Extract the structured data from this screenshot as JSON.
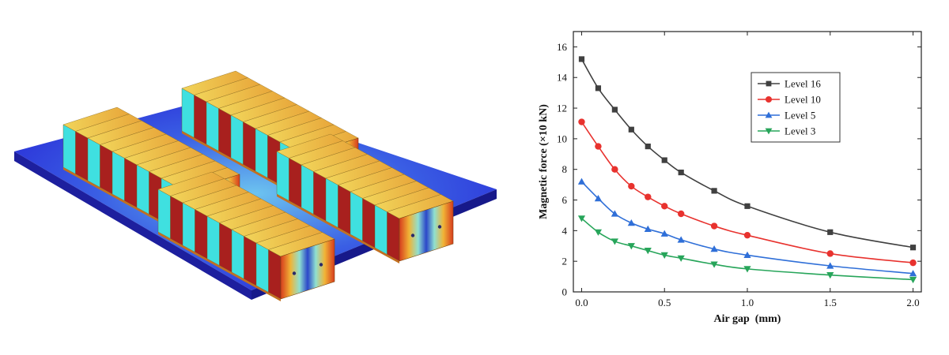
{
  "chart_data": {
    "type": "line",
    "title": "",
    "xlabel": "Air gap  (mm)",
    "ylabel": "Magnetic force (×10 kN)",
    "xlim": [
      -0.05,
      2.05
    ],
    "ylim": [
      0,
      17
    ],
    "xticks": [
      0.0,
      0.5,
      1.0,
      1.5,
      2.0
    ],
    "xtick_labels": [
      "0.0",
      "0.5",
      "1.0",
      "1.5",
      "2.0"
    ],
    "yticks": [
      0,
      2,
      4,
      6,
      8,
      10,
      12,
      14,
      16
    ],
    "ytick_labels": [
      "0",
      "2",
      "4",
      "6",
      "8",
      "10",
      "12",
      "14",
      "16"
    ],
    "grid": false,
    "legend_position": "top-right",
    "x": [
      0.0,
      0.1,
      0.2,
      0.3,
      0.4,
      0.5,
      0.6,
      0.8,
      1.0,
      1.5,
      2.0
    ],
    "series": [
      {
        "name": "Level 16",
        "color": "#404040",
        "marker": "square",
        "values": [
          15.2,
          13.3,
          11.9,
          10.6,
          9.5,
          8.6,
          7.8,
          6.6,
          5.6,
          3.9,
          2.9
        ]
      },
      {
        "name": "Level 10",
        "color": "#e8322e",
        "marker": "circle",
        "values": [
          11.1,
          9.5,
          8.0,
          6.9,
          6.2,
          5.6,
          5.1,
          4.3,
          3.7,
          2.5,
          1.9
        ]
      },
      {
        "name": "Level 5",
        "color": "#2f6fd8",
        "marker": "triangle-up",
        "values": [
          7.2,
          6.1,
          5.1,
          4.5,
          4.1,
          3.8,
          3.4,
          2.8,
          2.4,
          1.7,
          1.2
        ]
      },
      {
        "name": "Level 3",
        "color": "#27a55a",
        "marker": "triangle-down",
        "values": [
          4.8,
          3.9,
          3.3,
          3.0,
          2.7,
          2.4,
          2.2,
          1.8,
          1.5,
          1.1,
          0.8
        ]
      }
    ]
  },
  "simulation_render": {
    "type": "3d-colormap-render",
    "colors": {
      "base_plate": "#2a2fd8",
      "base_side": "#1d1f9e",
      "field_high": "#d63b1e",
      "field_mid": "#e8d84a",
      "field_low": "#1e3fc8",
      "magnet_cyan": "#3fe0e0",
      "magnet_red": "#a8201e"
    },
    "modules": 4,
    "magnets_per_module": 10
  }
}
